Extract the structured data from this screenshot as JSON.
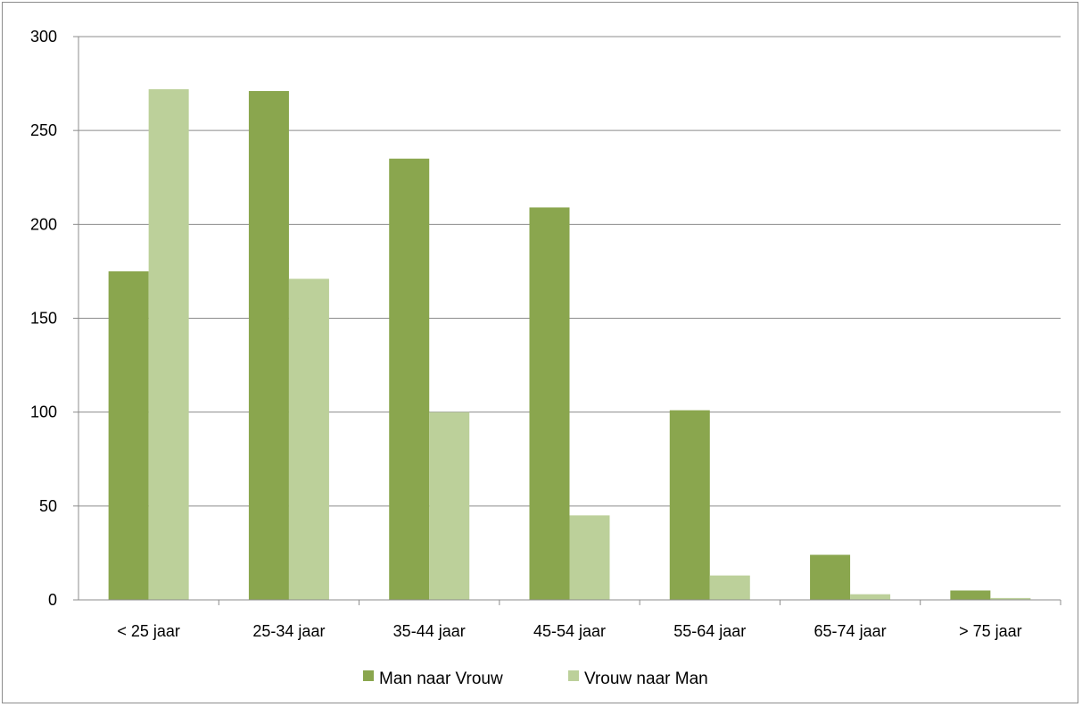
{
  "chart_data": {
    "type": "bar",
    "title": "",
    "xlabel": "",
    "ylabel": "",
    "categories": [
      "< 25 jaar",
      "25-34 jaar",
      "35-44 jaar",
      "45-54 jaar",
      "55-64 jaar",
      "65-74 jaar",
      "> 75 jaar"
    ],
    "series": [
      {
        "name": "Man naar Vrouw",
        "color": "#8aa64e",
        "values": [
          175,
          271,
          235,
          209,
          101,
          24,
          5
        ]
      },
      {
        "name": "Vrouw naar Man",
        "color": "#bcd09a",
        "values": [
          272,
          171,
          100,
          45,
          13,
          3,
          1
        ]
      }
    ],
    "ylim": [
      0,
      300
    ],
    "yticks": [
      "0",
      "50",
      "100",
      "150",
      "200",
      "250",
      "300"
    ],
    "grid": true,
    "legend_position": "bottom"
  }
}
